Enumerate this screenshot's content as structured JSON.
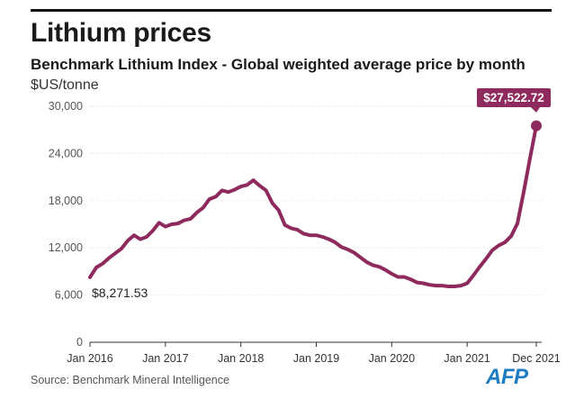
{
  "header": {
    "title": "Lithium prices",
    "subtitle": "Benchmark Lithium Index - Global weighted average price by month",
    "unit": "$US/tonne"
  },
  "footer": {
    "source": "Source: Benchmark Mineral Intelligence",
    "logo": "AFP"
  },
  "colors": {
    "line": "#8e2a5d",
    "axis": "#333333",
    "grid": "#dddddd"
  },
  "chart_data": {
    "type": "line",
    "title": "Lithium prices",
    "ylabel": "$US/tonne",
    "xlabel": "",
    "ylim": [
      0,
      30000
    ],
    "y_ticks": [
      0,
      6000,
      12000,
      18000,
      24000,
      30000
    ],
    "y_tick_labels": [
      "0",
      "6,000",
      "12,000",
      "18,000",
      "24,000",
      "30,000"
    ],
    "x_ticks": [
      0,
      12,
      24,
      36,
      48,
      60,
      71
    ],
    "x_tick_labels": [
      "Jan 2016",
      "Jan 2017",
      "Jan 2018",
      "Jan 2019",
      "Jan 2020",
      "Jan 2021",
      "Dec 2021"
    ],
    "series": [
      {
        "name": "Benchmark Lithium Index",
        "x": [
          0,
          1,
          2,
          3,
          4,
          5,
          6,
          7,
          8,
          9,
          10,
          11,
          12,
          13,
          14,
          15,
          16,
          17,
          18,
          19,
          20,
          21,
          22,
          23,
          24,
          25,
          26,
          27,
          28,
          29,
          30,
          31,
          32,
          33,
          34,
          35,
          36,
          37,
          38,
          39,
          40,
          41,
          42,
          43,
          44,
          45,
          46,
          47,
          48,
          49,
          50,
          51,
          52,
          53,
          54,
          55,
          56,
          57,
          58,
          59,
          60,
          61,
          62,
          63,
          64,
          65,
          66,
          67,
          68,
          69,
          70,
          71
        ],
        "values": [
          8271.53,
          9500,
          10000,
          10700,
          11300,
          11900,
          12900,
          13600,
          13100,
          13400,
          14200,
          15200,
          14700,
          15000,
          15100,
          15500,
          15700,
          16500,
          17100,
          18200,
          18500,
          19300,
          19100,
          19400,
          19800,
          20000,
          20600,
          19900,
          19300,
          17700,
          16800,
          14900,
          14500,
          14300,
          13800,
          13600,
          13600,
          13400,
          13100,
          12700,
          12100,
          11800,
          11400,
          10800,
          10200,
          9800,
          9600,
          9200,
          8700,
          8300,
          8300,
          8000,
          7600,
          7500,
          7300,
          7200,
          7200,
          7100,
          7100,
          7200,
          7500,
          8500,
          9600,
          10600,
          11700,
          12300,
          12700,
          13500,
          15100,
          19100,
          23400,
          27522.72
        ]
      }
    ],
    "annotations": [
      {
        "text": "$8,271.53",
        "x": 0,
        "y": 8271.53
      },
      {
        "text": "$27,522.72",
        "x": 71,
        "y": 27522.72
      }
    ]
  }
}
